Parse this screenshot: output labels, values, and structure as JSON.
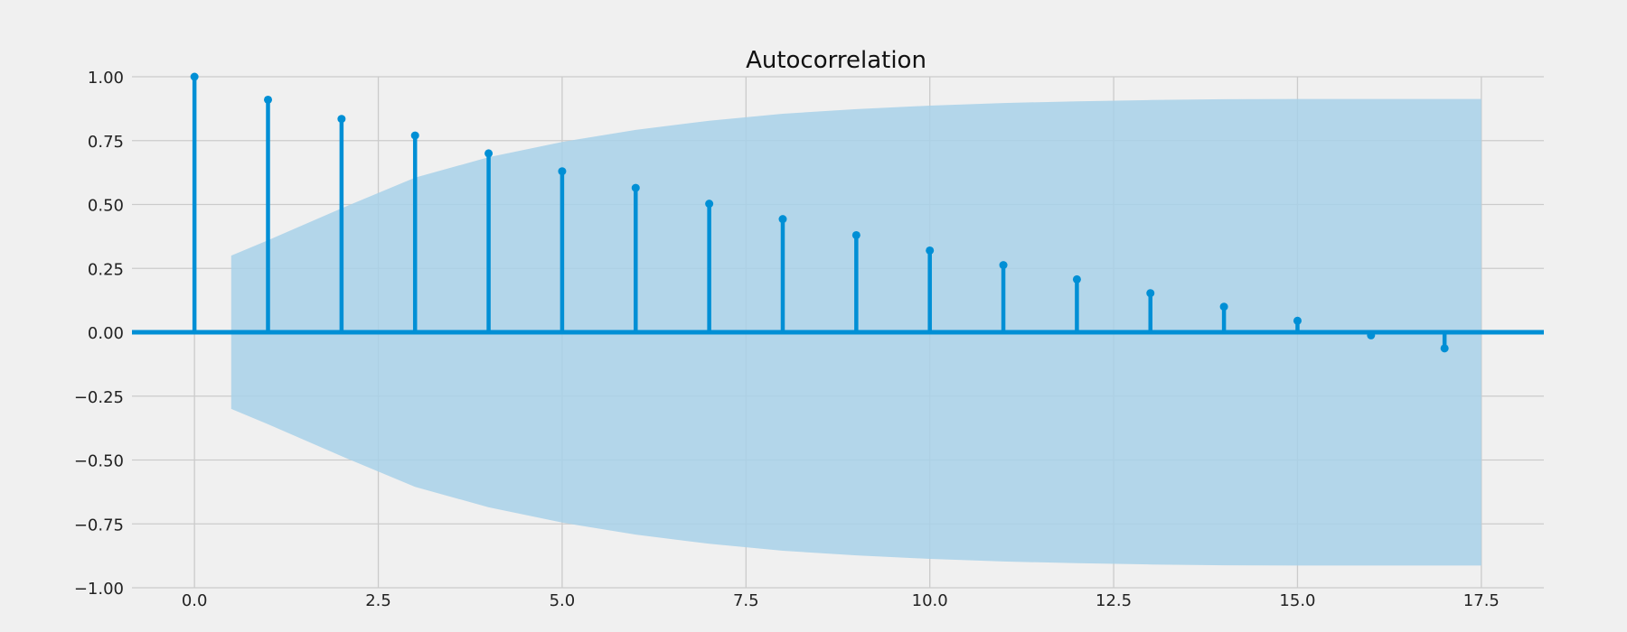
{
  "chart_data": {
    "type": "bar",
    "subtype": "stem",
    "title": "Autocorrelation",
    "xlabel": "",
    "ylabel": "",
    "xlim": [
      -0.85,
      18.35
    ],
    "ylim": [
      -1.0,
      1.0
    ],
    "grid": true,
    "x_ticks": [
      0.0,
      2.5,
      5.0,
      7.5,
      10.0,
      12.5,
      15.0,
      17.5
    ],
    "x_tick_labels": [
      "0.0",
      "2.5",
      "5.0",
      "7.5",
      "10.0",
      "12.5",
      "15.0",
      "17.5"
    ],
    "y_ticks": [
      -1.0,
      -0.75,
      -0.5,
      -0.25,
      0.0,
      0.25,
      0.5,
      0.75,
      1.0
    ],
    "y_tick_labels": [
      "−1.00",
      "−0.75",
      "−0.50",
      "−0.25",
      "0.00",
      "0.25",
      "0.50",
      "0.75",
      "1.00"
    ],
    "series": [
      {
        "lags": [
          0,
          1,
          2,
          3,
          4,
          5,
          6,
          7,
          8,
          9,
          10,
          11,
          12,
          13,
          14,
          15,
          16,
          17
        ],
        "values": [
          1.0,
          0.91,
          0.835,
          0.77,
          0.7,
          0.63,
          0.565,
          0.503,
          0.443,
          0.38,
          0.32,
          0.263,
          0.207,
          0.153,
          0.1,
          0.045,
          -0.012,
          -0.063
        ]
      }
    ],
    "confidence_band": {
      "x": [
        0.5,
        1,
        2,
        3,
        4,
        5,
        6,
        7,
        8,
        9,
        10,
        11,
        12,
        13,
        14,
        15,
        16,
        17,
        17.5
      ],
      "upper": [
        0.3,
        0.36,
        0.485,
        0.605,
        0.685,
        0.745,
        0.792,
        0.828,
        0.855,
        0.873,
        0.887,
        0.897,
        0.904,
        0.909,
        0.912,
        0.913,
        0.913,
        0.913,
        0.913
      ],
      "lower": [
        -0.3,
        -0.36,
        -0.485,
        -0.605,
        -0.685,
        -0.745,
        -0.792,
        -0.828,
        -0.855,
        -0.873,
        -0.887,
        -0.897,
        -0.904,
        -0.909,
        -0.912,
        -0.913,
        -0.913,
        -0.913,
        -0.913
      ]
    },
    "colors": {
      "stem": "#008fd5",
      "band": "#a8d1e9",
      "zero_line": "#008fd5",
      "grid": "#cbcbcb",
      "background": "#f0f0f0"
    }
  }
}
